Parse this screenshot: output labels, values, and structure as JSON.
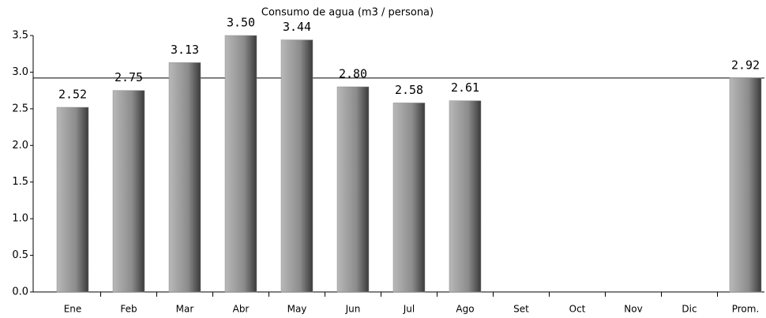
{
  "chart_data": {
    "type": "bar",
    "title": "Consumo de agua (m3 / persona)",
    "categories": [
      "Ene",
      "Feb",
      "Mar",
      "Abr",
      "May",
      "Jun",
      "Jul",
      "Ago",
      "Set",
      "Oct",
      "Nov",
      "Dic",
      "Prom."
    ],
    "values": [
      2.52,
      2.75,
      3.13,
      3.5,
      3.44,
      2.8,
      2.58,
      2.61,
      null,
      null,
      null,
      null,
      2.92
    ],
    "value_labels": [
      "2.52",
      "2.75",
      "3.13",
      "3.50",
      "3.44",
      "2.80",
      "2.58",
      "2.61",
      null,
      null,
      null,
      null,
      "2.92"
    ],
    "color": "#8c8c8c",
    "ylim": [
      0,
      3.5
    ],
    "yticks": [
      {
        "value": 0,
        "label": "0.0"
      },
      0.5,
      {
        "value": 1,
        "label": "1.0"
      },
      1.5,
      {
        "value": 2,
        "label": "2.0"
      },
      2.5,
      {
        "value": 3,
        "label": "3.0"
      },
      3.5
    ]
  }
}
